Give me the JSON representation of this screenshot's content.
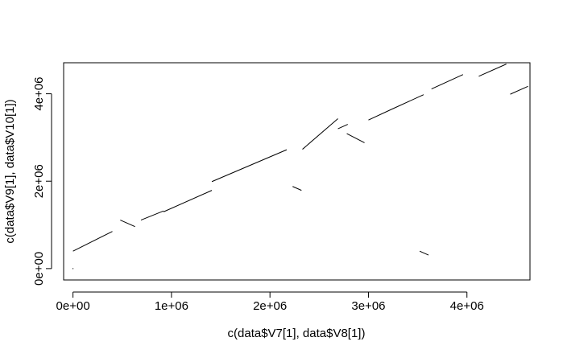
{
  "chart_data": {
    "type": "line",
    "title": "",
    "xlabel": "c(data$V7[1], data$V8[1])",
    "ylabel": "c(data$V9[1], data$V10[1])",
    "xlim": [
      -95000,
      4640000
    ],
    "ylim": [
      -260000,
      4710000
    ],
    "x_ticks": [
      {
        "value": 0,
        "label": "0e+00"
      },
      {
        "value": 1000000,
        "label": "1e+06"
      },
      {
        "value": 2000000,
        "label": "2e+06"
      },
      {
        "value": 3000000,
        "label": "3e+06"
      },
      {
        "value": 4000000,
        "label": "4e+06"
      }
    ],
    "y_ticks": [
      {
        "value": 0,
        "label": "0e+00"
      },
      {
        "value": 2000000,
        "label": "2e+06"
      },
      {
        "value": 4000000,
        "label": "4e+06"
      }
    ],
    "grid": false,
    "segments": [
      {
        "x1": 0,
        "y1": 400000,
        "x2": 400000,
        "y2": 850000
      },
      {
        "x1": 480000,
        "y1": 1110000,
        "x2": 630000,
        "y2": 960000
      },
      {
        "x1": 690000,
        "y1": 1110000,
        "x2": 920000,
        "y2": 1320000
      },
      {
        "x1": 920000,
        "y1": 1300000,
        "x2": 1410000,
        "y2": 1790000
      },
      {
        "x1": 1410000,
        "y1": 1990000,
        "x2": 2170000,
        "y2": 2720000
      },
      {
        "x1": 2230000,
        "y1": 1880000,
        "x2": 2320000,
        "y2": 1790000
      },
      {
        "x1": 2330000,
        "y1": 2730000,
        "x2": 2690000,
        "y2": 3430000
      },
      {
        "x1": 2690000,
        "y1": 3200000,
        "x2": 2790000,
        "y2": 3300000
      },
      {
        "x1": 2780000,
        "y1": 3090000,
        "x2": 2960000,
        "y2": 2880000
      },
      {
        "x1": 3000000,
        "y1": 3400000,
        "x2": 3230000,
        "y2": 3640000
      },
      {
        "x1": 3230000,
        "y1": 3640000,
        "x2": 3560000,
        "y2": 3980000
      },
      {
        "x1": 3520000,
        "y1": 400000,
        "x2": 3610000,
        "y2": 310000
      },
      {
        "x1": 3640000,
        "y1": 4110000,
        "x2": 3960000,
        "y2": 4440000
      },
      {
        "x1": 4120000,
        "y1": 4400000,
        "x2": 4400000,
        "y2": 4680000
      },
      {
        "x1": 4440000,
        "y1": 3990000,
        "x2": 4620000,
        "y2": 4170000
      }
    ],
    "points": [
      {
        "x": 0,
        "y": 0
      }
    ]
  }
}
